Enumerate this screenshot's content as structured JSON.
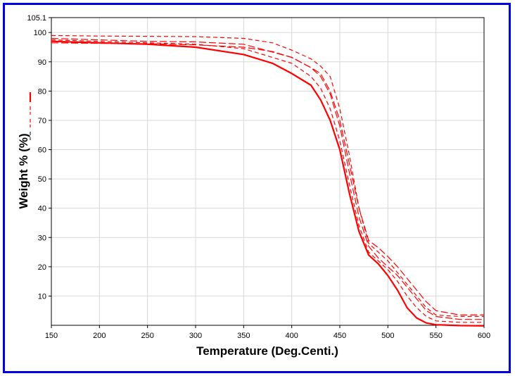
{
  "chart_data": {
    "type": "line",
    "title": "",
    "xlabel": "Temperature (Deg.Centi.)",
    "ylabel": "Weight % (%)",
    "xlim": [
      150,
      600
    ],
    "ylim": [
      0,
      105.1
    ],
    "xticks": [
      "150",
      "200",
      "250",
      "300",
      "350",
      "400",
      "450",
      "500",
      "550",
      "600"
    ],
    "yticks": [
      "10",
      "20",
      "30",
      "40",
      "50",
      "60",
      "70",
      "80",
      "90",
      "100",
      "105.1"
    ],
    "grid": true,
    "legend": "left",
    "colors": {
      "series": "#ff0000",
      "border": "#0000e0",
      "grid": "#d8d8d8"
    },
    "series": [
      {
        "style": "solid",
        "width": 2.2,
        "points": [
          [
            150,
            97
          ],
          [
            200,
            96.5
          ],
          [
            250,
            96
          ],
          [
            300,
            95
          ],
          [
            350,
            92.5
          ],
          [
            380,
            89.5
          ],
          [
            400,
            86
          ],
          [
            420,
            82
          ],
          [
            430,
            77
          ],
          [
            440,
            70
          ],
          [
            450,
            60
          ],
          [
            460,
            45
          ],
          [
            470,
            32
          ],
          [
            480,
            24
          ],
          [
            490,
            21
          ],
          [
            500,
            17
          ],
          [
            510,
            12
          ],
          [
            520,
            6
          ],
          [
            530,
            2.5
          ],
          [
            540,
            0.8
          ],
          [
            550,
            0.2
          ],
          [
            575,
            -0.1
          ],
          [
            600,
            -0.2
          ]
        ]
      },
      {
        "style": "dash",
        "width": 1.2,
        "points": [
          [
            150,
            97.5
          ],
          [
            200,
            97
          ],
          [
            250,
            96.5
          ],
          [
            300,
            96
          ],
          [
            350,
            94.5
          ],
          [
            400,
            89.5
          ],
          [
            420,
            85
          ],
          [
            430,
            81
          ],
          [
            440,
            74
          ],
          [
            450,
            63
          ],
          [
            460,
            48
          ],
          [
            470,
            34
          ],
          [
            480,
            25
          ],
          [
            490,
            22
          ],
          [
            500,
            19
          ],
          [
            510,
            15
          ],
          [
            520,
            10
          ],
          [
            530,
            6
          ],
          [
            540,
            3
          ],
          [
            550,
            1.5
          ],
          [
            575,
            1
          ],
          [
            600,
            1
          ]
        ]
      },
      {
        "style": "longdash",
        "width": 1.2,
        "points": [
          [
            150,
            98
          ],
          [
            200,
            97.5
          ],
          [
            250,
            97
          ],
          [
            300,
            96.8
          ],
          [
            350,
            96
          ],
          [
            400,
            91.5
          ],
          [
            420,
            88
          ],
          [
            430,
            85
          ],
          [
            440,
            79
          ],
          [
            450,
            68
          ],
          [
            460,
            52
          ],
          [
            470,
            37
          ],
          [
            480,
            27
          ],
          [
            490,
            23
          ],
          [
            500,
            20
          ],
          [
            510,
            17
          ],
          [
            520,
            13
          ],
          [
            530,
            9
          ],
          [
            540,
            5
          ],
          [
            550,
            3
          ],
          [
            575,
            2
          ],
          [
            600,
            2
          ]
        ]
      },
      {
        "style": "dash",
        "width": 1.2,
        "points": [
          [
            150,
            99
          ],
          [
            200,
            98.8
          ],
          [
            250,
            98.7
          ],
          [
            300,
            98.6
          ],
          [
            350,
            98
          ],
          [
            380,
            96.5
          ],
          [
            400,
            94
          ],
          [
            420,
            91
          ],
          [
            430,
            88.5
          ],
          [
            440,
            85
          ],
          [
            450,
            74
          ],
          [
            460,
            58
          ],
          [
            470,
            40
          ],
          [
            480,
            28
          ],
          [
            490,
            25
          ],
          [
            500,
            22
          ],
          [
            510,
            18
          ],
          [
            520,
            14
          ],
          [
            530,
            10
          ],
          [
            540,
            6
          ],
          [
            550,
            3.5
          ],
          [
            575,
            3
          ],
          [
            600,
            3
          ]
        ]
      },
      {
        "style": "longdash",
        "width": 1.2,
        "points": [
          [
            150,
            96.5
          ],
          [
            200,
            96.3
          ],
          [
            250,
            96.2
          ],
          [
            300,
            95.8
          ],
          [
            350,
            95
          ],
          [
            380,
            93.5
          ],
          [
            400,
            91.5
          ],
          [
            420,
            88
          ],
          [
            430,
            86
          ],
          [
            440,
            80
          ],
          [
            450,
            70
          ],
          [
            460,
            55
          ],
          [
            470,
            40
          ],
          [
            480,
            29
          ],
          [
            490,
            26.5
          ],
          [
            500,
            23.5
          ],
          [
            510,
            20
          ],
          [
            520,
            16
          ],
          [
            530,
            12
          ],
          [
            540,
            8
          ],
          [
            550,
            5
          ],
          [
            575,
            3.5
          ],
          [
            600,
            3.5
          ]
        ]
      }
    ]
  }
}
